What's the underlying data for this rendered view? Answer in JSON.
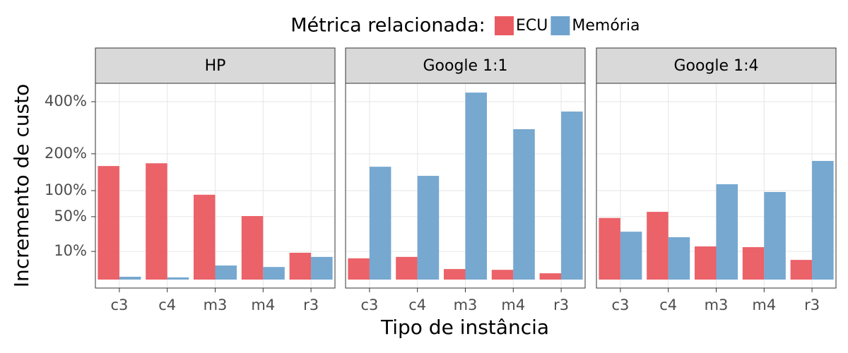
{
  "chart_data": {
    "type": "bar",
    "scale": "sqrt",
    "legend_title": "Métrica relacionada:",
    "x_label": "Tipo de instância",
    "y_label": "Incremento de custo",
    "facets": [
      "HP",
      "Google 1:1",
      "Google 1:4"
    ],
    "categories": [
      "c3",
      "c4",
      "m3",
      "m4",
      "r3"
    ],
    "series": [
      {
        "name": "ECU",
        "color": "#ea5a61",
        "values": [
          [
            163,
            171,
            91,
            51,
            9.1
          ],
          [
            5.7,
            6.5,
            1.4,
            1.2,
            0.5
          ],
          [
            48,
            58,
            13.9,
            13.3,
            4.9
          ]
        ]
      },
      {
        "name": "Memória",
        "color": "#6fa3ce",
        "values": [
          [
            0.1,
            0.06,
            2.5,
            2,
            6.5
          ],
          [
            161,
            136,
            442,
            286,
            357
          ],
          [
            29,
            22.7,
            115,
            97,
            178
          ]
        ]
      }
    ],
    "ylim": [
      0,
      487
    ],
    "yticks": [
      {
        "value": 10,
        "label": "10%"
      },
      {
        "value": 50,
        "label": "50%"
      },
      {
        "value": 100,
        "label": "100%"
      },
      {
        "value": 200,
        "label": "200%"
      },
      {
        "value": 400,
        "label": "400%"
      }
    ],
    "grid": true
  }
}
